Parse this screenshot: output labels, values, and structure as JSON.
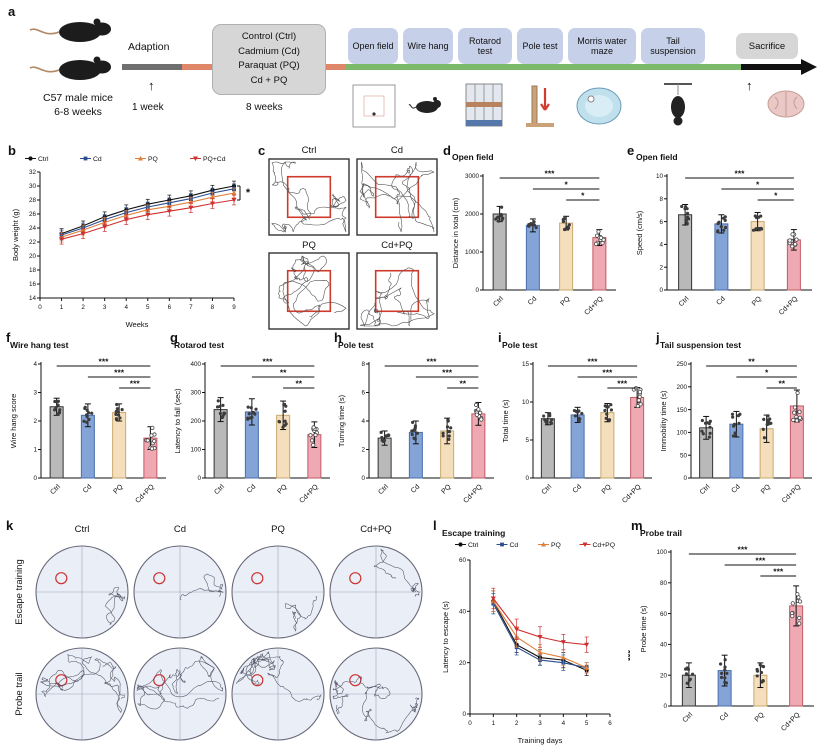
{
  "labels": {
    "a": "a",
    "b": "b",
    "c": "c",
    "d": "d",
    "e": "e",
    "f": "f",
    "g": "g",
    "h": "h",
    "i": "i",
    "j": "j",
    "k": "k",
    "l": "l",
    "m": "m"
  },
  "icons": {
    "up_arrow": "↑"
  },
  "colors": {
    "ctrl_bar": "#b9b9b9",
    "ctrl_edge": "#333333",
    "cd_bar": "#84a3d6",
    "cd_edge": "#4a6fae",
    "pq_bar": "#f4debc",
    "pq_edge": "#c9a96e",
    "cdpq_bar": "#efa9b3",
    "cdpq_edge": "#c25a66",
    "ctrl_line": "#111111",
    "cd_line": "#2c4e8f",
    "pq_line": "#e0803c",
    "cdpq_line": "#cf3030",
    "timeline_adaption": "#6f6f6f",
    "timeline_treatment": "#e0876a",
    "timeline_tests": "#7cb96a",
    "timeline_end": "#111111",
    "test_box_bg": "#c6d0e8",
    "group_box_bg": "#d6d6d6"
  },
  "panel_a": {
    "mice_line1": "C57 male mice",
    "mice_line2": "6-8 weeks",
    "adaption_label": "Adaption",
    "week1_label": "1 week",
    "week8_label": "8 weeks",
    "group_lines": [
      "Control (Ctrl)",
      "Cadmium (Cd)",
      "Paraquat (PQ)",
      "Cd + PQ"
    ],
    "tests": [
      "Open field",
      "Wire hang",
      "Rotarod test",
      "Pole test",
      "Morris water maze",
      "Tail suspension"
    ],
    "sacrifice_label": "Sacrifice"
  },
  "groups": [
    "Ctrl",
    "Cd",
    "PQ",
    "Cd+PQ"
  ],
  "panel_c": {
    "labels": [
      "Ctrl",
      "Cd",
      "PQ",
      "Cd+PQ"
    ]
  },
  "panel_k": {
    "col_labels": [
      "Ctrl",
      "Cd",
      "PQ",
      "Cd+PQ"
    ],
    "row_labels": [
      "Escape training",
      "Probe trail"
    ]
  },
  "chart_data": [
    {
      "id": "b",
      "type": "line",
      "xlabel": "Weeks",
      "ylabel": "Body weight (g)",
      "x": [
        1,
        2,
        3,
        4,
        5,
        6,
        7,
        8,
        9
      ],
      "xlim": [
        0,
        9
      ],
      "xticks": [
        0,
        1,
        2,
        3,
        4,
        5,
        6,
        7,
        8,
        9
      ],
      "ylim": [
        14,
        32
      ],
      "yticks": [
        14,
        16,
        18,
        20,
        22,
        24,
        26,
        28,
        30,
        32
      ],
      "series": [
        {
          "name": "Ctrl",
          "marker": "circle",
          "values": [
            23.2,
            24.3,
            25.6,
            26.6,
            27.4,
            28.0,
            28.6,
            29.4,
            30.0
          ],
          "errors": [
            0.7,
            0.7,
            0.7,
            0.7,
            0.7,
            0.7,
            0.7,
            0.7,
            0.7
          ]
        },
        {
          "name": "Cd",
          "marker": "square",
          "values": [
            23.0,
            24.0,
            25.2,
            26.2,
            27.0,
            27.6,
            28.2,
            29.0,
            29.6
          ],
          "errors": [
            0.7,
            0.7,
            0.7,
            0.7,
            0.7,
            0.7,
            0.7,
            0.7,
            0.7
          ]
        },
        {
          "name": "PQ",
          "marker": "triangle",
          "values": [
            22.7,
            23.7,
            24.8,
            25.8,
            26.6,
            27.1,
            27.7,
            28.4,
            29.0
          ],
          "errors": [
            0.7,
            0.7,
            0.7,
            0.7,
            0.7,
            0.7,
            0.7,
            0.7,
            0.7
          ]
        },
        {
          "name": "PQ+Cd",
          "marker": "triangle-down",
          "values": [
            22.4,
            23.2,
            24.2,
            25.2,
            25.9,
            26.4,
            26.9,
            27.5,
            28.0
          ],
          "errors": [
            0.7,
            0.7,
            0.7,
            0.7,
            0.7,
            0.7,
            0.7,
            0.7,
            0.7
          ]
        }
      ],
      "sig_right": "*",
      "sig_bracket": true
    },
    {
      "id": "d",
      "type": "bar",
      "title": "Open field",
      "ylabel": "Distance in total (cm)",
      "categories": [
        "Ctrl",
        "Cd",
        "PQ",
        "Cd+PQ"
      ],
      "values": [
        2000,
        1700,
        1760,
        1380
      ],
      "errors": [
        200,
        170,
        180,
        210
      ],
      "ylim": [
        0,
        3000
      ],
      "yticks": [
        0,
        1000,
        2000,
        3000
      ],
      "sig": [
        {
          "from": 0,
          "to": 3,
          "label": "***"
        },
        {
          "from": 1,
          "to": 3,
          "label": "*"
        },
        {
          "from": 2,
          "to": 3,
          "label": "*"
        }
      ]
    },
    {
      "id": "e",
      "type": "bar",
      "title": "Open field",
      "ylabel": "Speed (cm/s)",
      "categories": [
        "Ctrl",
        "Cd",
        "PQ",
        "Cd+PQ"
      ],
      "values": [
        6.6,
        5.8,
        6.0,
        4.4
      ],
      "errors": [
        0.9,
        0.8,
        0.8,
        0.9
      ],
      "ylim": [
        0,
        10
      ],
      "yticks": [
        0,
        2,
        4,
        6,
        8,
        10
      ],
      "sig": [
        {
          "from": 0,
          "to": 3,
          "label": "***"
        },
        {
          "from": 1,
          "to": 3,
          "label": "*"
        },
        {
          "from": 2,
          "to": 3,
          "label": "*"
        }
      ]
    },
    {
      "id": "f",
      "type": "bar",
      "title": "Wire hang test",
      "ylabel": "Wire hang score",
      "categories": [
        "Ctrl",
        "Cd",
        "PQ",
        "Cd+PQ"
      ],
      "values": [
        2.5,
        2.2,
        2.3,
        1.4
      ],
      "errors": [
        0.3,
        0.4,
        0.3,
        0.4
      ],
      "ylim": [
        0,
        4
      ],
      "yticks": [
        0,
        1,
        2,
        3,
        4
      ],
      "sig": [
        {
          "from": 0,
          "to": 3,
          "label": "***"
        },
        {
          "from": 1,
          "to": 3,
          "label": "***"
        },
        {
          "from": 2,
          "to": 3,
          "label": "***"
        }
      ]
    },
    {
      "id": "g",
      "type": "bar",
      "title": "Rotarod test",
      "ylabel": "Latency to fall (sec)",
      "categories": [
        "Ctrl",
        "Cd",
        "PQ",
        "Cd+PQ"
      ],
      "values": [
        240,
        232,
        220,
        152
      ],
      "errors": [
        42,
        46,
        50,
        45
      ],
      "ylim": [
        0,
        400
      ],
      "yticks": [
        0,
        100,
        200,
        300,
        400
      ],
      "sig": [
        {
          "from": 0,
          "to": 3,
          "label": "***"
        },
        {
          "from": 1,
          "to": 3,
          "label": "**"
        },
        {
          "from": 2,
          "to": 3,
          "label": "**"
        }
      ]
    },
    {
      "id": "h",
      "type": "bar",
      "title": "Pole test",
      "ylabel": "Turning time (s)",
      "categories": [
        "Ctrl",
        "Cd",
        "PQ",
        "Cd+PQ"
      ],
      "values": [
        2.8,
        3.2,
        3.3,
        4.5
      ],
      "errors": [
        0.5,
        0.8,
        0.9,
        0.8
      ],
      "ylim": [
        0,
        8
      ],
      "yticks": [
        0,
        2,
        4,
        6,
        8
      ],
      "sig": [
        {
          "from": 0,
          "to": 3,
          "label": "***"
        },
        {
          "from": 1,
          "to": 3,
          "label": "***"
        },
        {
          "from": 2,
          "to": 3,
          "label": "**"
        }
      ]
    },
    {
      "id": "i",
      "type": "bar",
      "title": "Pole test",
      "ylabel": "Total time (s)",
      "categories": [
        "Ctrl",
        "Cd",
        "PQ",
        "Cd+PQ"
      ],
      "values": [
        7.8,
        8.3,
        8.6,
        10.6
      ],
      "errors": [
        0.8,
        1.0,
        1.2,
        1.3
      ],
      "ylim": [
        0,
        15
      ],
      "yticks": [
        0,
        5,
        10,
        15
      ],
      "sig": [
        {
          "from": 0,
          "to": 3,
          "label": "***"
        },
        {
          "from": 1,
          "to": 3,
          "label": "***"
        },
        {
          "from": 2,
          "to": 3,
          "label": "***"
        }
      ]
    },
    {
      "id": "j",
      "type": "bar",
      "title": "Tail suspension test",
      "ylabel": "Immobility time (s)",
      "categories": [
        "Ctrl",
        "Cd",
        "PQ",
        "Cd+PQ"
      ],
      "values": [
        110,
        118,
        108,
        158
      ],
      "errors": [
        25,
        28,
        30,
        35
      ],
      "ylim": [
        0,
        250
      ],
      "yticks": [
        0,
        50,
        100,
        150,
        200,
        250
      ],
      "sig": [
        {
          "from": 0,
          "to": 3,
          "label": "**"
        },
        {
          "from": 1,
          "to": 3,
          "label": "*"
        },
        {
          "from": 2,
          "to": 3,
          "label": "**"
        }
      ]
    },
    {
      "id": "l",
      "type": "line",
      "title": "Escape training",
      "xlabel": "Training days",
      "ylabel": "Latency to escape (s)",
      "x": [
        1,
        2,
        3,
        4,
        5
      ],
      "xlim": [
        0,
        6
      ],
      "xticks": [
        0,
        1,
        2,
        3,
        4,
        5,
        6
      ],
      "ylim": [
        0,
        60
      ],
      "yticks": [
        0,
        20,
        40,
        60
      ],
      "series": [
        {
          "name": "Ctrl",
          "marker": "circle",
          "values": [
            44,
            27,
            22,
            21,
            17
          ],
          "errors": [
            4,
            3,
            3,
            3,
            2
          ]
        },
        {
          "name": "Cd",
          "marker": "square",
          "values": [
            43,
            26,
            21,
            20,
            18
          ],
          "errors": [
            4,
            3,
            2,
            3,
            2
          ]
        },
        {
          "name": "PQ",
          "marker": "triangle",
          "values": [
            44,
            30,
            24,
            22,
            18
          ],
          "errors": [
            4,
            4,
            3,
            3,
            2
          ]
        },
        {
          "name": "Cd+PQ",
          "marker": "triangle-down",
          "values": [
            45,
            33,
            30,
            28,
            27
          ],
          "errors": [
            4,
            4,
            4,
            3,
            3
          ]
        }
      ],
      "sig_right": "***"
    },
    {
      "id": "m",
      "type": "bar",
      "title": "Probe trail",
      "ylabel": "Probe time (s)",
      "categories": [
        "Ctrl",
        "Cd",
        "PQ",
        "Cd+PQ"
      ],
      "values": [
        20,
        23,
        20,
        65
      ],
      "errors": [
        8,
        10,
        8,
        13
      ],
      "ylim": [
        0,
        100
      ],
      "yticks": [
        0,
        20,
        40,
        60,
        80,
        100
      ],
      "sig": [
        {
          "from": 0,
          "to": 3,
          "label": "***"
        },
        {
          "from": 1,
          "to": 3,
          "label": "***"
        },
        {
          "from": 2,
          "to": 3,
          "label": "***"
        }
      ]
    }
  ]
}
